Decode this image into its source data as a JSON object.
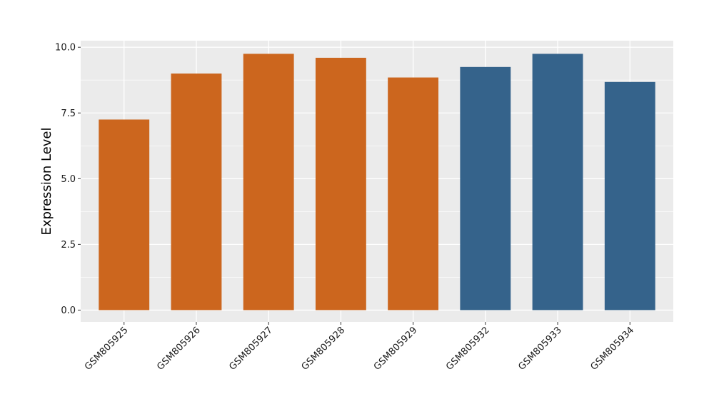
{
  "chart_data": {
    "type": "bar",
    "categories": [
      "GSM805925",
      "GSM805926",
      "GSM805927",
      "GSM805928",
      "GSM805929",
      "GSM805932",
      "GSM805933",
      "GSM805934"
    ],
    "values": [
      7.25,
      9.0,
      9.75,
      9.6,
      8.85,
      9.25,
      9.75,
      8.68
    ],
    "groups": [
      "orange",
      "orange",
      "orange",
      "orange",
      "orange",
      "blue",
      "blue",
      "blue"
    ],
    "ylabel": "Expression Level",
    "xlabel": "",
    "ylim": [
      -0.45,
      10.25
    ],
    "yticks": [
      0.0,
      2.5,
      5.0,
      7.5,
      10.0
    ],
    "ytick_labels": [
      "0.0",
      "2.5",
      "5.0",
      "7.5",
      "10.0"
    ],
    "grid": true,
    "colors": {
      "orange": "#CC661E",
      "blue": "#35638B",
      "panel": "#EBEBEB",
      "grid": "#FFFFFF"
    }
  }
}
